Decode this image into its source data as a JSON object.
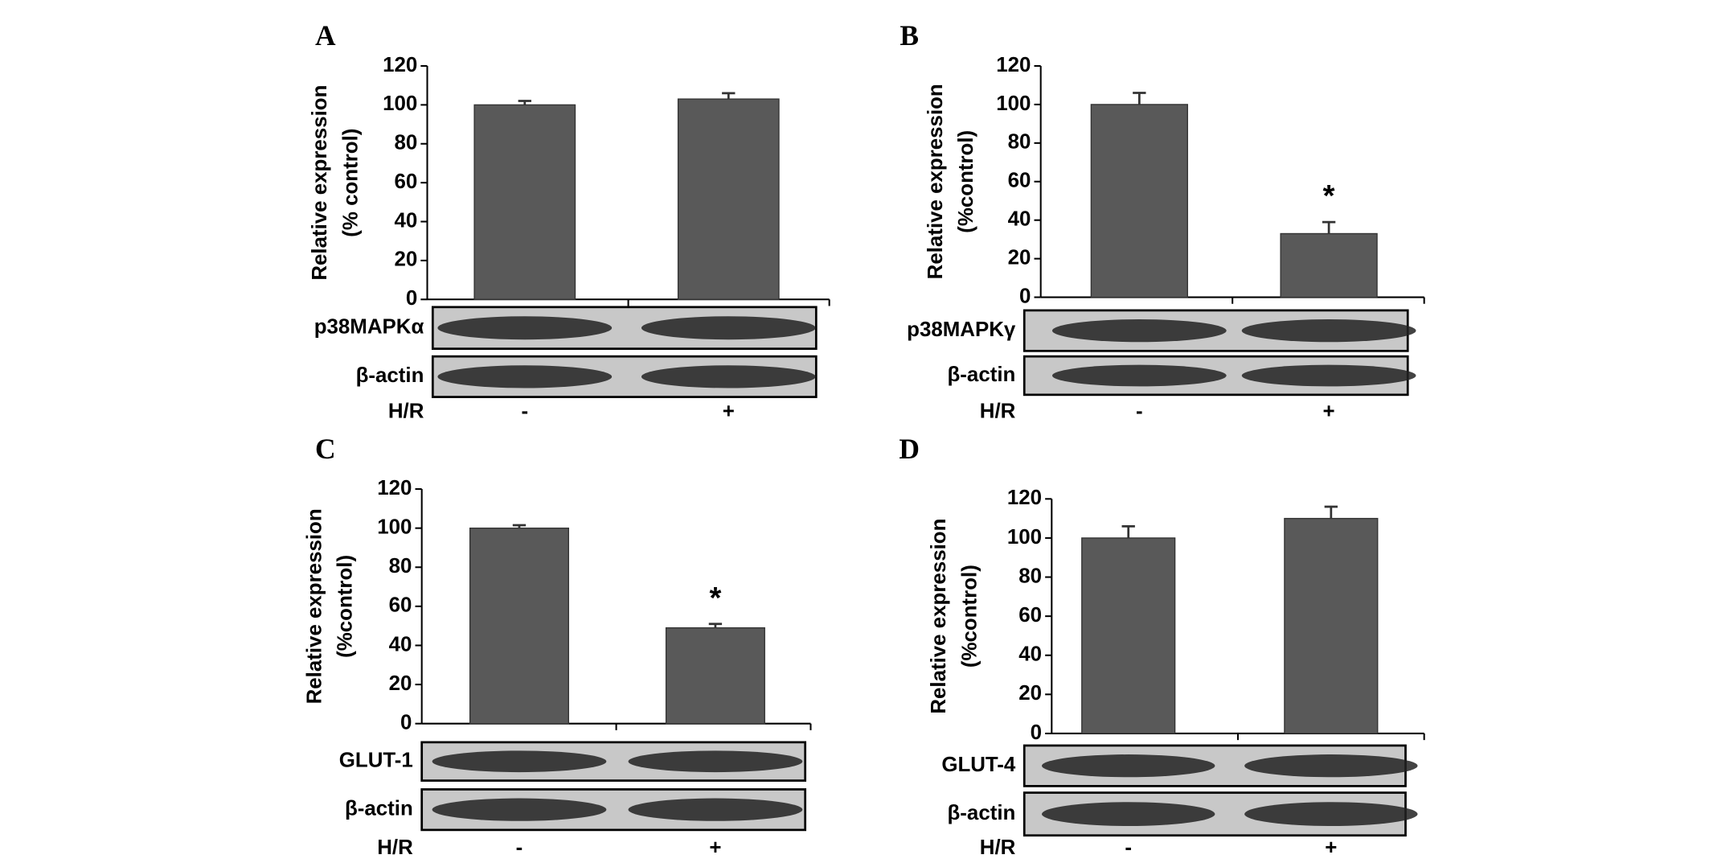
{
  "chart_data": [
    {
      "type": "bar",
      "panel": "A",
      "ylabel": [
        "Relative expression",
        "(% control)"
      ],
      "categories": [
        "-",
        "+"
      ],
      "xlabel": "H/R",
      "values": [
        100,
        103
      ],
      "errors": [
        2,
        3
      ],
      "color": "#595959",
      "ylim": [
        0,
        120
      ],
      "yticks": [
        0,
        20,
        40,
        60,
        80,
        100,
        120
      ],
      "blots": [
        "p38MAPKα",
        "β-actin"
      ]
    },
    {
      "type": "bar",
      "panel": "B",
      "ylabel": [
        "Relative expression",
        "(%control)"
      ],
      "categories": [
        "-",
        "+"
      ],
      "xlabel": "H/R",
      "values": [
        100,
        33
      ],
      "errors": [
        6,
        6
      ],
      "color": "#595959",
      "ylim": [
        0,
        120
      ],
      "yticks": [
        0,
        20,
        40,
        60,
        80,
        100,
        120
      ],
      "blots": [
        "p38MAPKγ",
        "β-actin"
      ],
      "annotations": [
        {
          "category_index": 1,
          "text": "*"
        }
      ]
    },
    {
      "type": "bar",
      "panel": "C",
      "ylabel": [
        "Relative expression",
        "(%control)"
      ],
      "categories": [
        "-",
        "+"
      ],
      "xlabel": "H/R",
      "values": [
        100,
        49
      ],
      "errors": [
        1.5,
        2
      ],
      "color": "#595959",
      "ylim": [
        0,
        120
      ],
      "yticks": [
        0,
        20,
        40,
        60,
        80,
        100,
        120
      ],
      "blots": [
        "GLUT-1",
        "β-actin"
      ],
      "annotations": [
        {
          "category_index": 1,
          "text": "*"
        }
      ]
    },
    {
      "type": "bar",
      "panel": "D",
      "ylabel": [
        "Relative expression",
        "(%control)"
      ],
      "categories": [
        "-",
        "+"
      ],
      "xlabel": "H/R",
      "values": [
        100,
        110
      ],
      "errors": [
        6,
        6
      ],
      "color": "#595959",
      "ylim": [
        0,
        120
      ],
      "yticks": [
        0,
        20,
        40,
        60,
        80,
        100,
        120
      ],
      "blots": [
        "GLUT-4",
        "β-actin"
      ]
    }
  ]
}
